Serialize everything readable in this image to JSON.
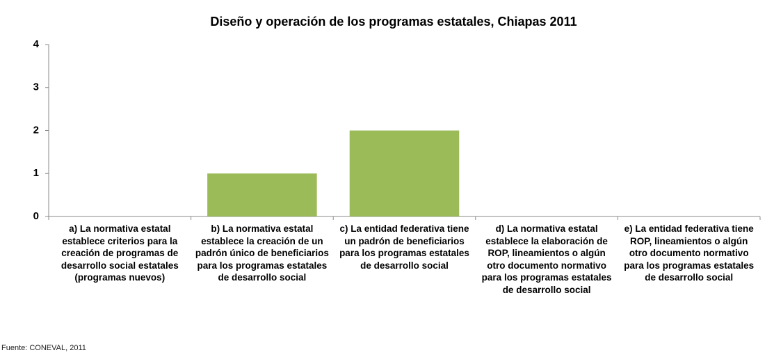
{
  "chart_data": {
    "type": "bar",
    "title": "Diseño y operación de los programas estatales, Chiapas 2011",
    "categories": [
      "a) La normativa estatal establece criterios para la creación de programas de desarrollo social estatales (programas nuevos)",
      "b) La normativa estatal establece la creación de un padrón único de beneficiarios para los programas estatales de desarrollo social",
      "c) La entidad federativa tiene un padrón de beneficiarios para los programas estatales de desarrollo social",
      "d) La normativa estatal establece la elaboración de ROP, lineamientos o algún otro documento normativo para los programas estatales de desarrollo social",
      "e) La entidad federativa tiene ROP, lineamientos o algún otro documento normativo para los programas estatales de desarrollo social"
    ],
    "values": [
      0,
      1,
      2,
      0,
      0
    ],
    "color": "#9bbb59",
    "ylim": [
      0,
      4
    ],
    "yticks": [
      0,
      1,
      2,
      3,
      4
    ],
    "grid": false,
    "source": "Fuente: CONEVAL, 2011"
  }
}
